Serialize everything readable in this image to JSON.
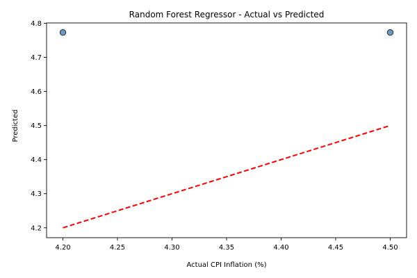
{
  "chart_data": {
    "type": "scatter",
    "title": "Random Forest Regressor - Actual vs Predicted",
    "xlabel": "Actual CPI Inflation (%)",
    "ylabel": "Predicted",
    "xlim": [
      4.185,
      4.515
    ],
    "ylim": [
      4.171,
      4.801
    ],
    "xticks": [
      "4.20",
      "4.25",
      "4.30",
      "4.35",
      "4.40",
      "4.45",
      "4.50"
    ],
    "yticks": [
      "4.2",
      "4.3",
      "4.4",
      "4.5",
      "4.6",
      "4.7",
      "4.8"
    ],
    "grid": false,
    "points": [
      {
        "x": 4.2,
        "y": 4.773
      },
      {
        "x": 4.5,
        "y": 4.773
      }
    ],
    "reference_line": {
      "x": [
        4.2,
        4.5
      ],
      "y": [
        4.2,
        4.5
      ]
    },
    "colors": {
      "point_fill": "#5b8fbf",
      "point_edge": "#1f2a33",
      "reference_line": "#ff0000"
    }
  }
}
